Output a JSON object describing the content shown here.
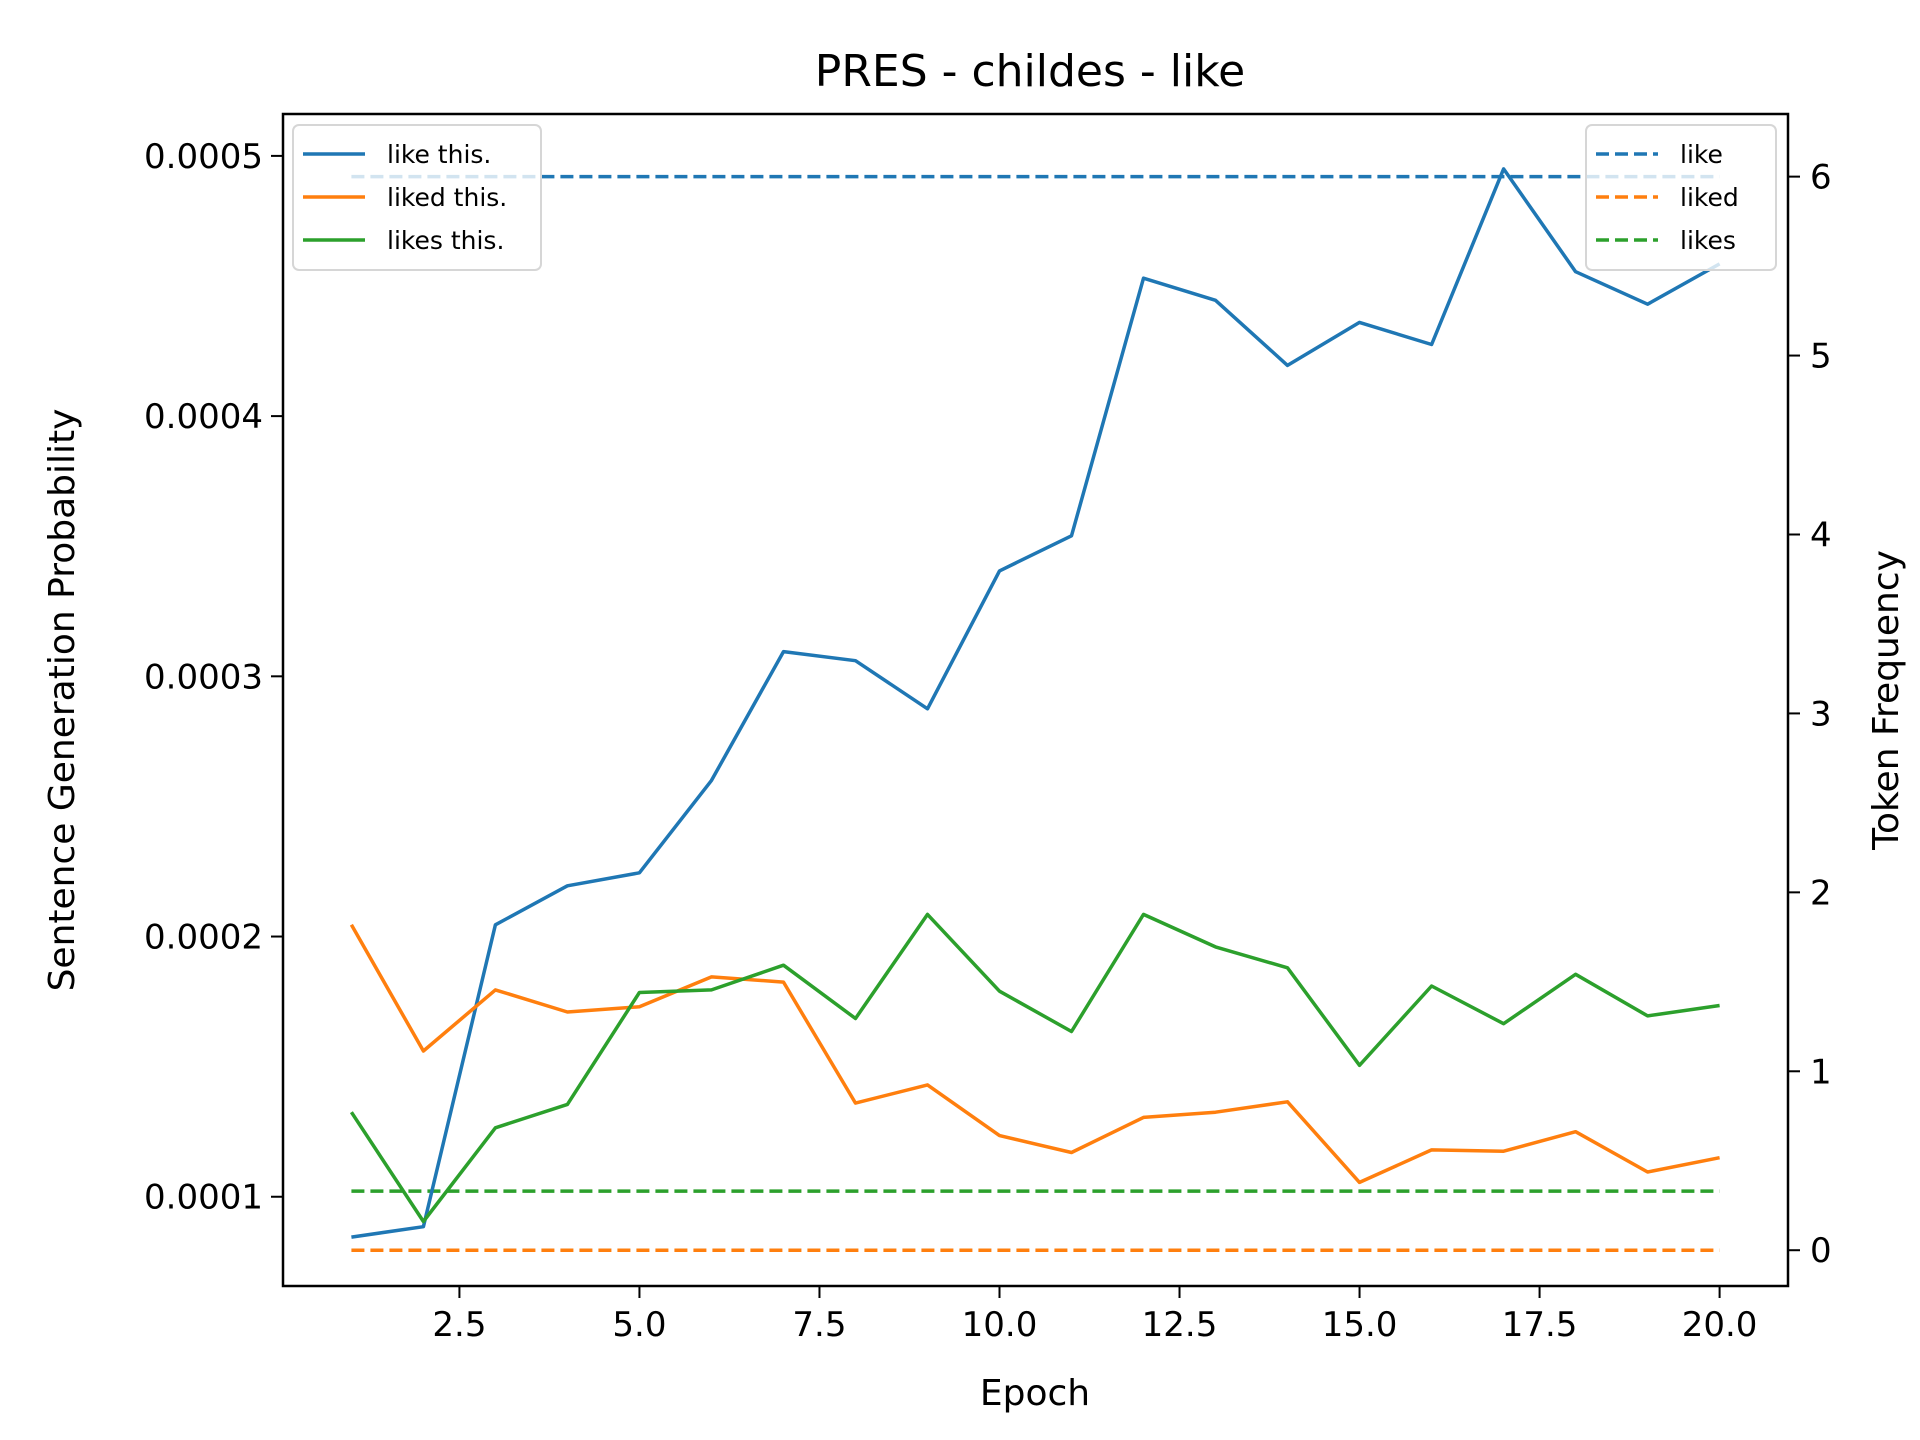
{
  "chart_data": {
    "type": "line",
    "title": "PRES - childes - like",
    "xlabel": "Epoch",
    "ylabel": "Sentence Generation Probability",
    "y2label": "Token Frequency",
    "xlim": [
      0.05,
      20.95
    ],
    "ylim": [
      6.57e-05,
      0.0005161
    ],
    "y2lim": [
      -0.2,
      6.35
    ],
    "x_ticks": [
      "2.5",
      "5.0",
      "7.5",
      "10.0",
      "12.5",
      "15.0",
      "17.5",
      "20.0"
    ],
    "y_ticks": [
      "0.0001",
      "0.0002",
      "0.0003",
      "0.0004",
      "0.0005"
    ],
    "y2_ticks": [
      "0",
      "1",
      "2",
      "3",
      "4",
      "5",
      "6"
    ],
    "grid": false,
    "x": [
      1,
      2,
      3,
      4,
      5,
      6,
      7,
      8,
      9,
      10,
      11,
      12,
      13,
      14,
      15,
      16,
      17,
      18,
      19,
      20
    ],
    "series": [
      {
        "name": "like this.",
        "axis": "left",
        "color": "#1f77b4",
        "style": "solid",
        "values": [
          8.45e-05,
          8.85e-05,
          0.0002045,
          0.0002195,
          0.0002245,
          0.00026,
          0.0003095,
          0.000306,
          0.0002875,
          0.0003405,
          0.000354,
          0.000453,
          0.0004445,
          0.0004195,
          0.000436,
          0.0004275,
          0.000495,
          0.0004555,
          0.000443,
          0.0004585
        ]
      },
      {
        "name": "liked this.",
        "axis": "left",
        "color": "#ff7f0e",
        "style": "solid",
        "values": [
          0.0002045,
          0.000156,
          0.0001795,
          0.000171,
          0.000173,
          0.0001845,
          0.0001825,
          0.000136,
          0.000143,
          0.0001235,
          0.000117,
          0.0001305,
          0.0001325,
          0.0001365,
          0.0001055,
          0.000118,
          0.0001175,
          0.000125,
          0.0001095,
          0.000115
        ]
      },
      {
        "name": "likes this.",
        "axis": "left",
        "color": "#2ca02c",
        "style": "solid",
        "values": [
          0.0001325,
          9.05e-05,
          0.0001265,
          0.0001355,
          0.0001785,
          0.0001795,
          0.000189,
          0.0001685,
          0.0002085,
          0.000179,
          0.0001635,
          0.0002085,
          0.000196,
          0.000188,
          0.0001505,
          0.000181,
          0.0001665,
          0.0001855,
          0.0001695,
          0.0001735
        ]
      }
    ],
    "series2": [
      {
        "name": "like",
        "axis": "right",
        "color": "#1f77b4",
        "style": "dashed",
        "value": 6
      },
      {
        "name": "liked",
        "axis": "right",
        "color": "#ff7f0e",
        "style": "dashed",
        "value": 0
      },
      {
        "name": "likes",
        "axis": "right",
        "color": "#2ca02c",
        "style": "dashed",
        "value": 0.33
      }
    ],
    "legend_left_placement": "top-left",
    "legend_right_placement": "top-right"
  }
}
